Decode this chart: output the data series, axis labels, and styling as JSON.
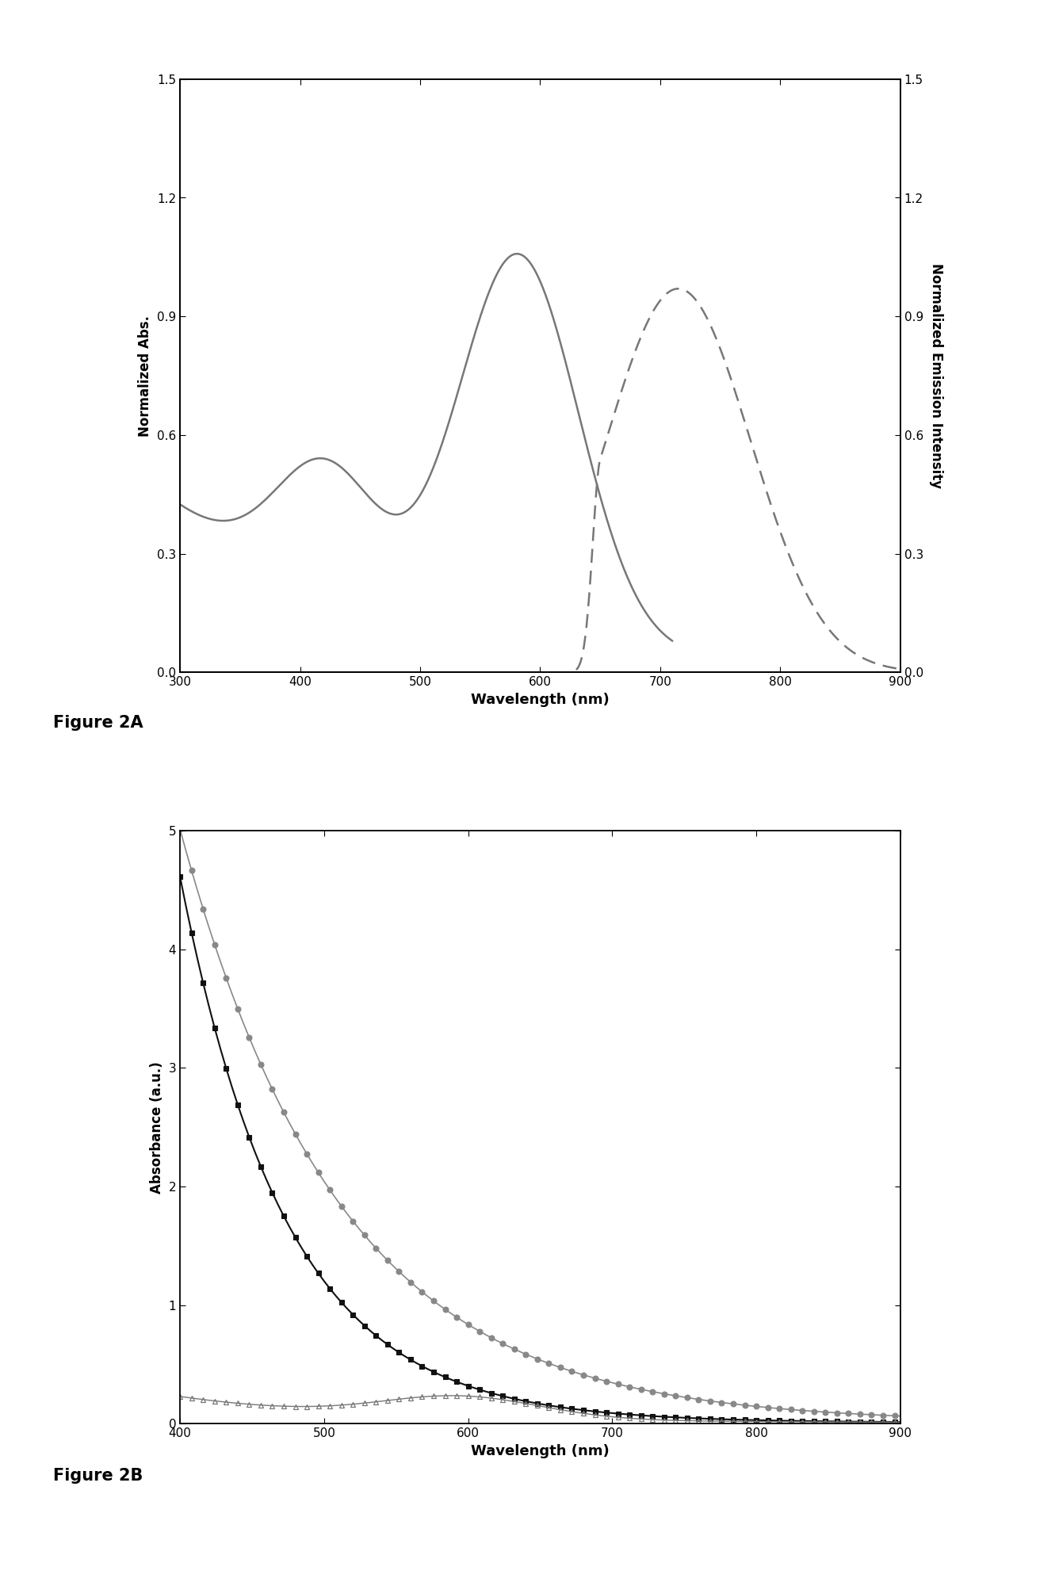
{
  "fig2A": {
    "xlim": [
      300,
      900
    ],
    "ylim": [
      0.0,
      1.5
    ],
    "xlabel": "Wavelength (nm)",
    "ylabel_left": "Normalized Abs.",
    "ylabel_right": "Normalized Emission Intensity",
    "xticks": [
      300,
      400,
      500,
      600,
      700,
      800,
      900
    ],
    "yticks": [
      0.0,
      0.3,
      0.6,
      0.9,
      1.2,
      1.5
    ],
    "line_color": "#777777",
    "dashed_color": "#777777"
  },
  "fig2B": {
    "xlim": [
      400,
      900
    ],
    "ylim": [
      0,
      5
    ],
    "xlabel": "Wavelength (nm)",
    "ylabel": "Absorbance (a.u.)",
    "xticks": [
      400,
      500,
      600,
      700,
      800,
      900
    ],
    "yticks": [
      0,
      1,
      2,
      3,
      4,
      5
    ],
    "circle_color": "#888888",
    "square_color": "#111111",
    "triangle_color": "#777777"
  },
  "figure_label_2A": "Figure 2A",
  "figure_label_2B": "Figure 2B",
  "background_color": "#ffffff"
}
